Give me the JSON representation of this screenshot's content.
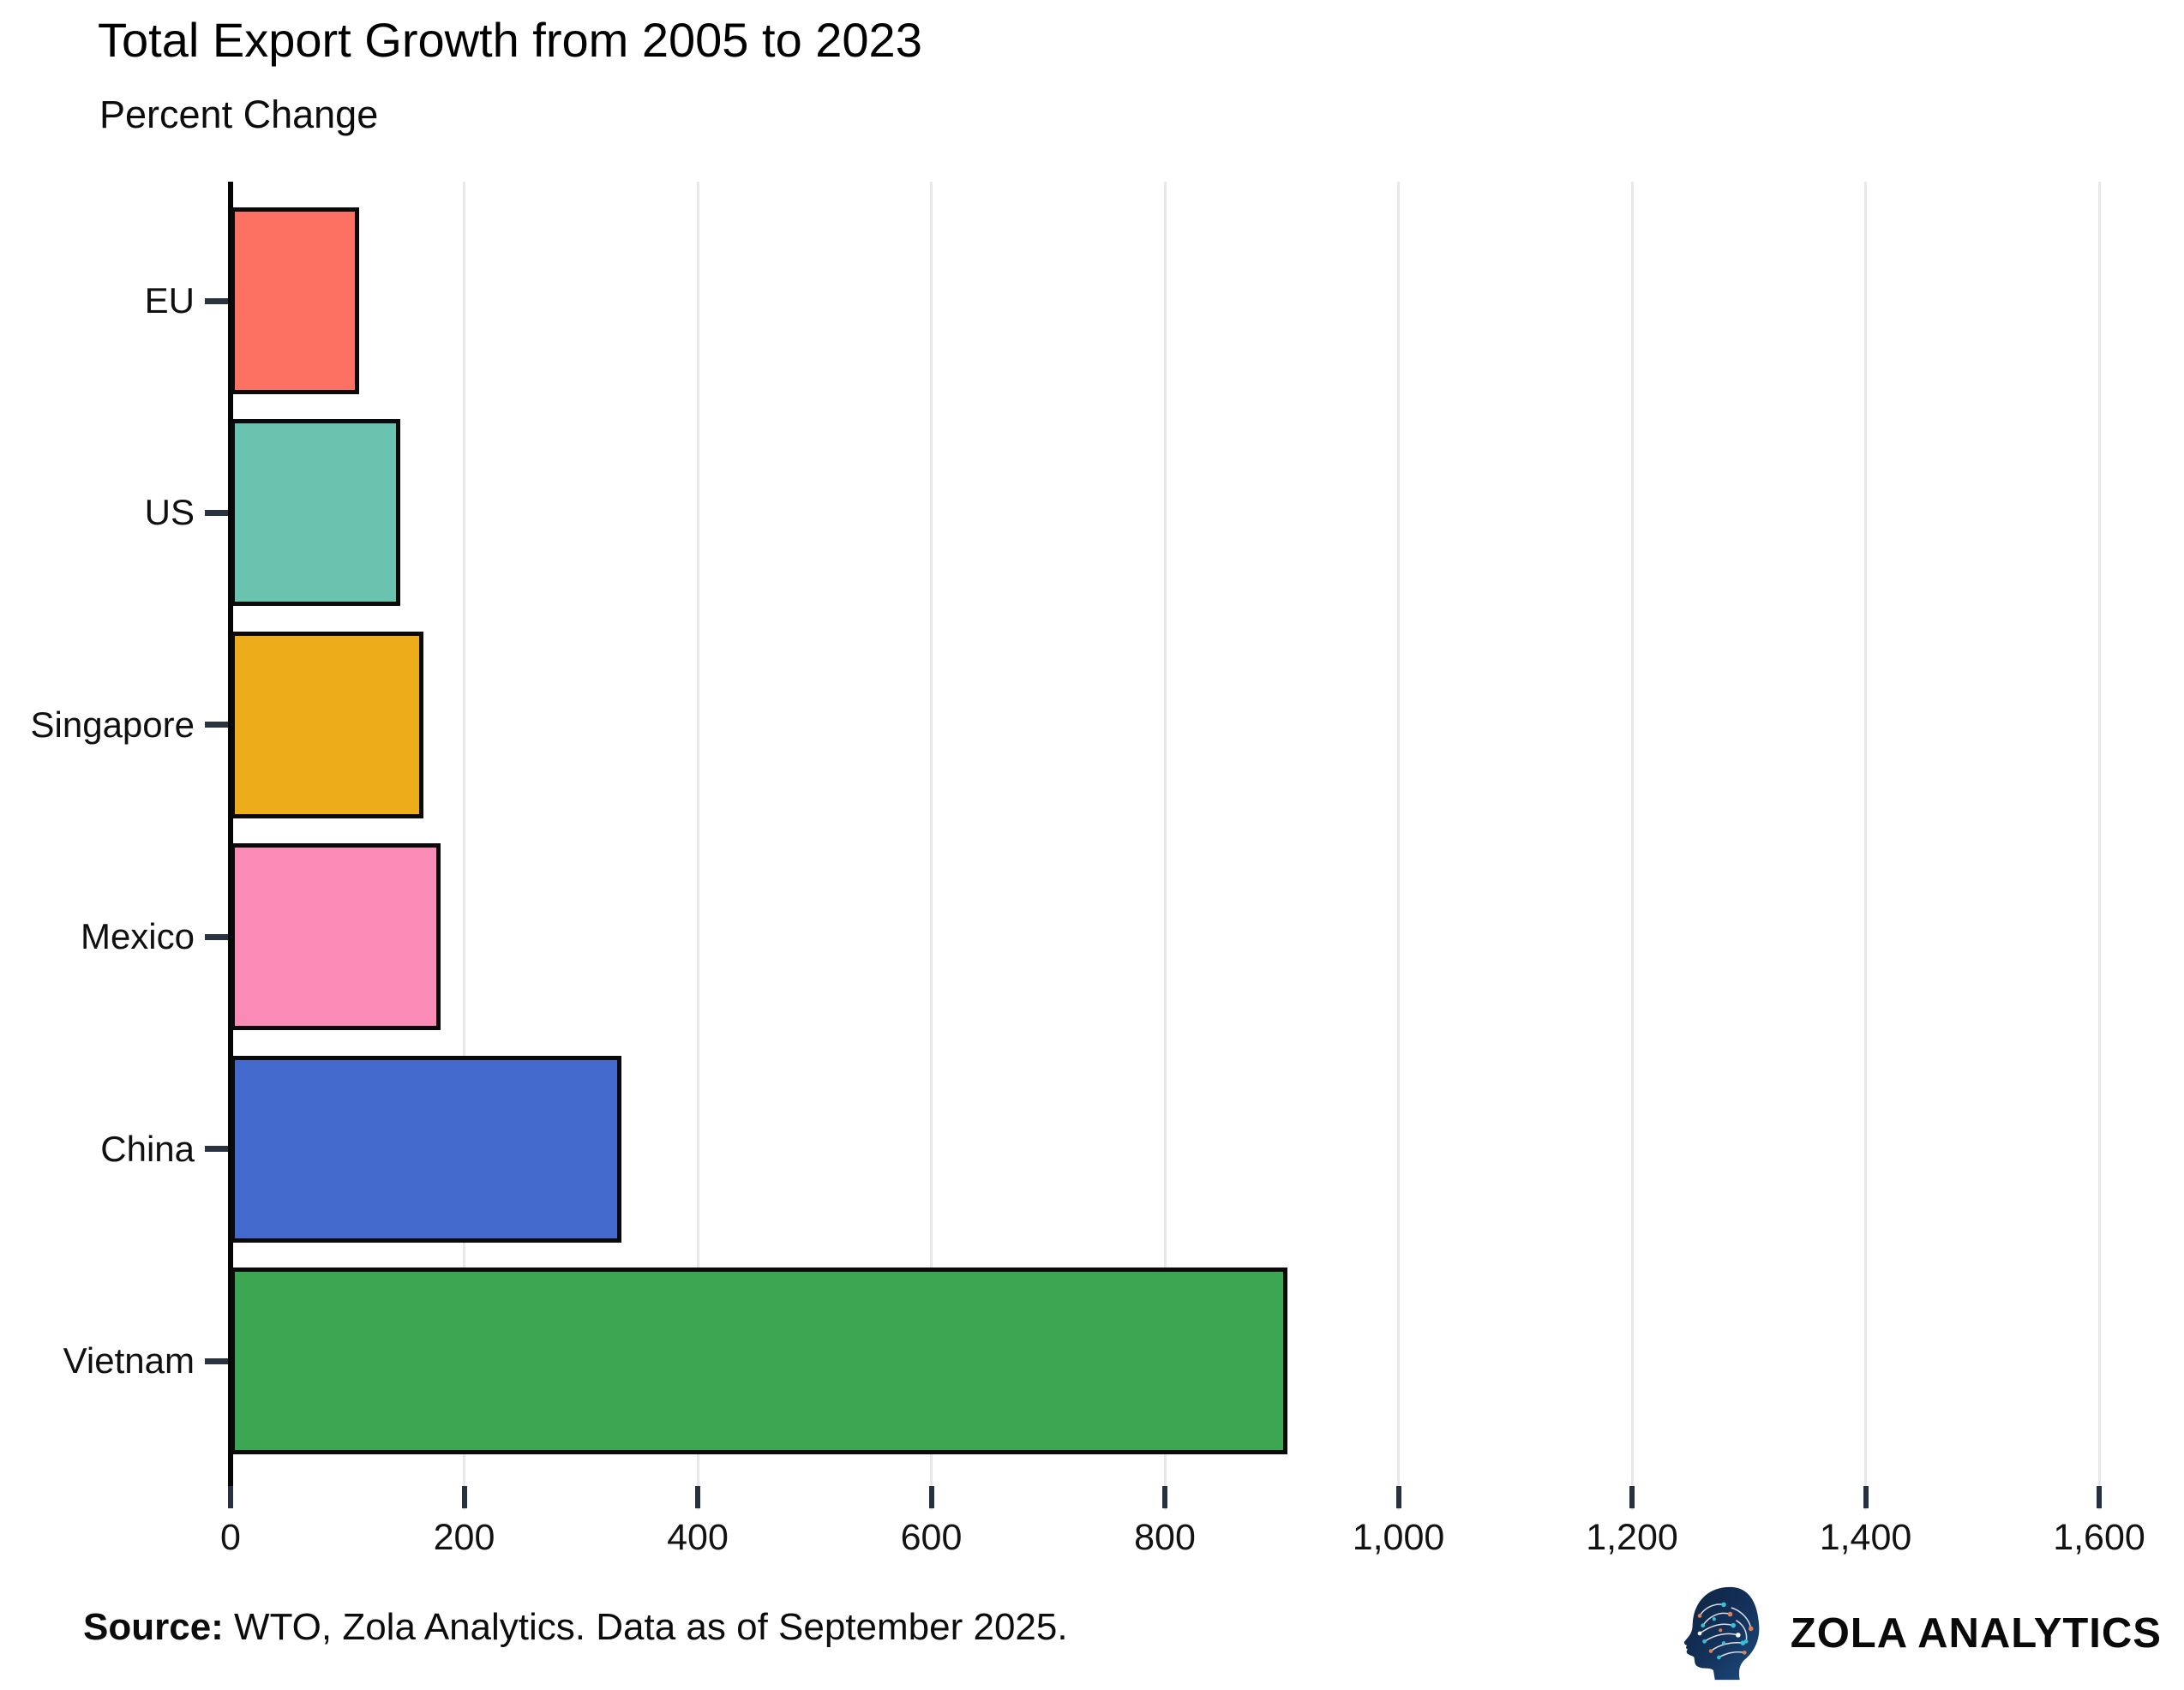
{
  "header": {
    "title": "Total Export Growth from 2005 to 2023",
    "subtitle": "Percent Change"
  },
  "chart_data": {
    "type": "bar",
    "orientation": "horizontal",
    "title": "Total Export Growth from 2005 to 2023",
    "subtitle": "Percent Change",
    "xlabel": "",
    "ylabel": "",
    "categories": [
      "EU",
      "US",
      "Singapore",
      "Mexico",
      "China",
      "Vietnam"
    ],
    "values": [
      110,
      145,
      165,
      180,
      335,
      905
    ],
    "bar_colors": [
      "#FC7161",
      "#6AC3AE",
      "#EDAD1A",
      "#FA8BB7",
      "#4269CB",
      "#3DA653"
    ],
    "bar_border_color": "#0a0a0a",
    "xlim": [
      0,
      1600
    ],
    "x_ticks": [
      0,
      200,
      400,
      600,
      800,
      1000,
      1200,
      1400,
      1600
    ],
    "x_tick_labels": [
      "0",
      "200",
      "400",
      "600",
      "800",
      "1,000",
      "1,200",
      "1,400",
      "1,600"
    ],
    "grid": "vertical-light-gray",
    "gridline_color": "#e6e8ea",
    "legend": "none"
  },
  "footer": {
    "source_label": "Source:",
    "source_text": " WTO, Zola Analytics. Data as of September 2025.",
    "brand": "ZOLA ANALYTICS",
    "brand_icon": "circuit-head-icon",
    "brand_icon_colors": {
      "head": "#132c50",
      "head_edge": "#1d4873",
      "trace": "#ffffff",
      "dot_teal": "#35c2d6",
      "dot_orange": "#e08055"
    }
  }
}
